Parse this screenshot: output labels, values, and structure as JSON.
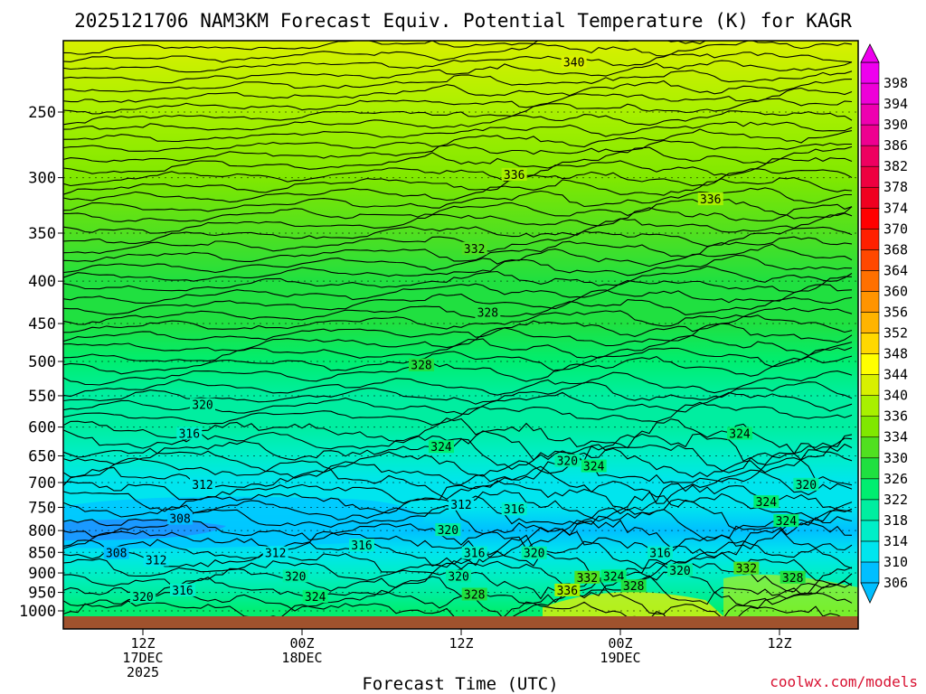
{
  "chart_data": {
    "type": "heatmap",
    "title": "2025121706 NAM3KM Forecast Equiv. Potential Temperature (K) for KAGR",
    "xlabel": "Forecast Time (UTC)",
    "ylabel": "",
    "credit": "coolwx.com/models",
    "y_axis": {
      "scale": "log",
      "range": [
        1013,
        200
      ],
      "ticks": [
        "250",
        "300",
        "350",
        "400",
        "450",
        "500",
        "550",
        "600",
        "650",
        "700",
        "750",
        "800",
        "850",
        "900",
        "950",
        "1000"
      ]
    },
    "x_axis": {
      "range_hours": [
        0,
        60
      ],
      "ticks": [
        {
          "hour": 6,
          "line1": "12Z",
          "line2": "17DEC",
          "line3": "2025"
        },
        {
          "hour": 18,
          "line1": "00Z",
          "line2": "18DEC",
          "line3": ""
        },
        {
          "hour": 30,
          "line1": "12Z",
          "line2": "",
          "line3": ""
        },
        {
          "hour": 42,
          "line1": "00Z",
          "line2": "19DEC",
          "line3": ""
        },
        {
          "hour": 54,
          "line1": "12Z",
          "line2": "",
          "line3": ""
        }
      ]
    },
    "colorbar": {
      "levels": [
        306,
        310,
        314,
        318,
        322,
        326,
        330,
        334,
        336,
        340,
        344,
        348,
        352,
        356,
        360,
        364,
        368,
        370,
        374,
        378,
        382,
        386,
        390,
        394,
        398
      ],
      "colors": [
        "#00bfff",
        "#00e5ee",
        "#00eec8",
        "#00eea0",
        "#00ee70",
        "#20e040",
        "#50e020",
        "#80e800",
        "#a8f000",
        "#d8f000",
        "#ffff00",
        "#ffd800",
        "#ffb400",
        "#ff9400",
        "#ff7000",
        "#ff4800",
        "#ff2000",
        "#ff0000",
        "#f00020",
        "#ee0040",
        "#ee0060",
        "#ee0090",
        "#ee00b0",
        "#ee00d8",
        "#ee00ee"
      ]
    },
    "background_field": [
      {
        "pressure": 200,
        "theta_e": 343
      },
      {
        "pressure": 250,
        "theta_e": 338
      },
      {
        "pressure": 300,
        "theta_e": 335
      },
      {
        "pressure": 350,
        "theta_e": 332
      },
      {
        "pressure": 400,
        "theta_e": 329
      },
      {
        "pressure": 450,
        "theta_e": 326
      },
      {
        "pressure": 500,
        "theta_e": 324
      },
      {
        "pressure": 550,
        "theta_e": 321
      },
      {
        "pressure": 600,
        "theta_e": 318
      },
      {
        "pressure": 650,
        "theta_e": 316
      },
      {
        "pressure": 700,
        "theta_e": 313
      },
      {
        "pressure": 750,
        "theta_e": 310
      },
      {
        "pressure": 800,
        "theta_e": 307
      },
      {
        "pressure": 850,
        "theta_e": 310
      },
      {
        "pressure": 900,
        "theta_e": 315
      },
      {
        "pressure": 950,
        "theta_e": 320
      },
      {
        "pressure": 1000,
        "theta_e": 322
      }
    ],
    "contour_labels": [
      {
        "value": "340",
        "hour": 38.5,
        "pressure": 218
      },
      {
        "value": "336",
        "hour": 34.0,
        "pressure": 298
      },
      {
        "value": "336",
        "hour": 48.8,
        "pressure": 319
      },
      {
        "value": "332",
        "hour": 31.0,
        "pressure": 366
      },
      {
        "value": "328",
        "hour": 32.0,
        "pressure": 437
      },
      {
        "value": "328",
        "hour": 27.0,
        "pressure": 506
      },
      {
        "value": "320",
        "hour": 10.5,
        "pressure": 565
      },
      {
        "value": "316",
        "hour": 9.5,
        "pressure": 612
      },
      {
        "value": "324",
        "hour": 28.5,
        "pressure": 635
      },
      {
        "value": "324",
        "hour": 51.0,
        "pressure": 612
      },
      {
        "value": "320",
        "hour": 38.0,
        "pressure": 660
      },
      {
        "value": "324",
        "hour": 40.0,
        "pressure": 670
      },
      {
        "value": "320",
        "hour": 56.0,
        "pressure": 705
      },
      {
        "value": "324",
        "hour": 53.0,
        "pressure": 740
      },
      {
        "value": "312",
        "hour": 10.5,
        "pressure": 705
      },
      {
        "value": "308",
        "hour": 8.8,
        "pressure": 775
      },
      {
        "value": "312",
        "hour": 30.0,
        "pressure": 745
      },
      {
        "value": "316",
        "hour": 34.0,
        "pressure": 755
      },
      {
        "value": "324",
        "hour": 54.5,
        "pressure": 780
      },
      {
        "value": "320",
        "hour": 29.0,
        "pressure": 800
      },
      {
        "value": "308",
        "hour": 4.0,
        "pressure": 853
      },
      {
        "value": "312",
        "hour": 7.0,
        "pressure": 870
      },
      {
        "value": "312",
        "hour": 16.0,
        "pressure": 853
      },
      {
        "value": "316",
        "hour": 22.5,
        "pressure": 835
      },
      {
        "value": "316",
        "hour": 31.0,
        "pressure": 853
      },
      {
        "value": "320",
        "hour": 35.5,
        "pressure": 853
      },
      {
        "value": "316",
        "hour": 45.0,
        "pressure": 853
      },
      {
        "value": "320",
        "hour": 46.5,
        "pressure": 895
      },
      {
        "value": "332",
        "hour": 51.5,
        "pressure": 890
      },
      {
        "value": "328",
        "hour": 55.0,
        "pressure": 913
      },
      {
        "value": "320",
        "hour": 17.5,
        "pressure": 910
      },
      {
        "value": "320",
        "hour": 29.8,
        "pressure": 910
      },
      {
        "value": "332",
        "hour": 39.5,
        "pressure": 913
      },
      {
        "value": "324",
        "hour": 41.5,
        "pressure": 910
      },
      {
        "value": "316",
        "hour": 9.0,
        "pressure": 946
      },
      {
        "value": "336",
        "hour": 38.0,
        "pressure": 946
      },
      {
        "value": "328",
        "hour": 43.0,
        "pressure": 935
      },
      {
        "value": "328",
        "hour": 31.0,
        "pressure": 957
      },
      {
        "value": "320",
        "hour": 6.0,
        "pressure": 963
      },
      {
        "value": "324",
        "hour": 19.0,
        "pressure": 963
      }
    ]
  }
}
